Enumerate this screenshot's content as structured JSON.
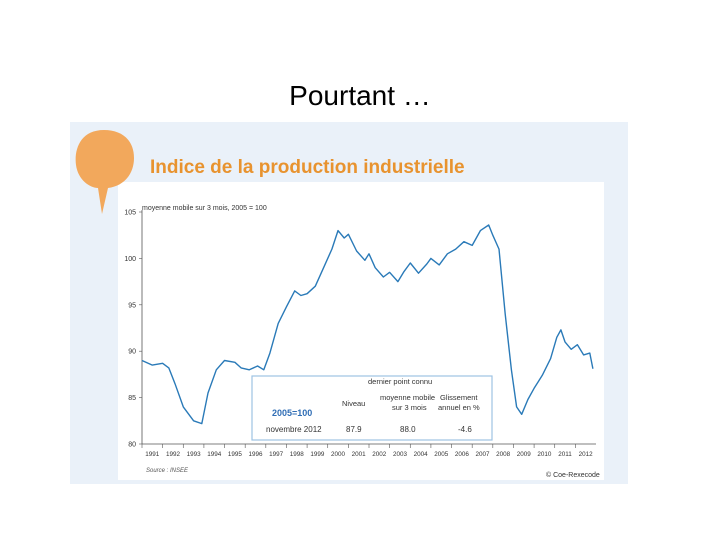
{
  "slide": {
    "title": "Pourtant …"
  },
  "colors": {
    "orange": "#f2a85c",
    "line": "#2a7ab8",
    "table_border": "#9ec3e3",
    "table_bg": "#ffffff",
    "emphasis": "#2f6db5"
  },
  "chart_data": {
    "type": "line",
    "title": "Indice de la production industrielle",
    "subtitle": "moyenne mobile sur 3 mois, 2005 = 100",
    "xlabel": "",
    "ylabel": "",
    "ylim": [
      80,
      105
    ],
    "yticks": [
      "105",
      "100",
      "95",
      "90",
      "85",
      "80"
    ],
    "xlim": [
      1991,
      2013
    ],
    "years": [
      "1991",
      "1992",
      "1993",
      "1994",
      "1995",
      "1996",
      "1997",
      "1998",
      "1999",
      "2000",
      "2001",
      "2002",
      "2003",
      "2004",
      "2005",
      "2006",
      "2007",
      "2008",
      "2009",
      "2010",
      "2011",
      "2012"
    ],
    "series": [
      {
        "values": [
          [
            1991.0,
            89.0
          ],
          [
            1991.5,
            88.5
          ],
          [
            1992.0,
            88.7
          ],
          [
            1992.3,
            88.2
          ],
          [
            1992.6,
            86.5
          ],
          [
            1993.0,
            84.0
          ],
          [
            1993.5,
            82.5
          ],
          [
            1993.9,
            82.2
          ],
          [
            1994.2,
            85.5
          ],
          [
            1994.6,
            88.0
          ],
          [
            1995.0,
            89.0
          ],
          [
            1995.5,
            88.8
          ],
          [
            1995.8,
            88.2
          ],
          [
            1996.2,
            88.0
          ],
          [
            1996.6,
            88.4
          ],
          [
            1996.9,
            88.0
          ],
          [
            1997.2,
            89.8
          ],
          [
            1997.6,
            93.0
          ],
          [
            1998.0,
            94.8
          ],
          [
            1998.4,
            96.5
          ],
          [
            1998.7,
            96.0
          ],
          [
            1999.0,
            96.2
          ],
          [
            1999.4,
            97.0
          ],
          [
            1999.8,
            99.0
          ],
          [
            2000.2,
            101.0
          ],
          [
            2000.5,
            103.0
          ],
          [
            2000.8,
            102.2
          ],
          [
            2001.0,
            102.6
          ],
          [
            2001.4,
            100.8
          ],
          [
            2001.8,
            99.8
          ],
          [
            2002.0,
            100.5
          ],
          [
            2002.3,
            99.0
          ],
          [
            2002.7,
            98.0
          ],
          [
            2003.0,
            98.5
          ],
          [
            2003.4,
            97.5
          ],
          [
            2003.7,
            98.6
          ],
          [
            2004.0,
            99.5
          ],
          [
            2004.4,
            98.4
          ],
          [
            2004.8,
            99.4
          ],
          [
            2005.0,
            100.0
          ],
          [
            2005.4,
            99.3
          ],
          [
            2005.8,
            100.5
          ],
          [
            2006.2,
            101.0
          ],
          [
            2006.6,
            101.8
          ],
          [
            2007.0,
            101.4
          ],
          [
            2007.4,
            103.0
          ],
          [
            2007.8,
            103.6
          ],
          [
            2008.0,
            102.5
          ],
          [
            2008.3,
            101.0
          ],
          [
            2008.6,
            94.0
          ],
          [
            2008.9,
            88.0
          ],
          [
            2009.15,
            84.0
          ],
          [
            2009.4,
            83.2
          ],
          [
            2009.7,
            84.8
          ],
          [
            2010.0,
            86.0
          ],
          [
            2010.4,
            87.4
          ],
          [
            2010.8,
            89.2
          ],
          [
            2011.1,
            91.5
          ],
          [
            2011.3,
            92.3
          ],
          [
            2011.5,
            91.0
          ],
          [
            2011.8,
            90.2
          ],
          [
            2012.1,
            90.7
          ],
          [
            2012.4,
            89.6
          ],
          [
            2012.7,
            89.8
          ],
          [
            2012.85,
            88.1
          ]
        ]
      }
    ],
    "annotations": {
      "source": "Source : INSEE",
      "copyright": "© Coe-Rexecode",
      "base_label": "2005=100",
      "table": {
        "header_main": "dernier point connu",
        "col1": "Niveau",
        "col2_line1": "moyenne mobile",
        "col2_line2": "sur 3 mois",
        "col3_line1": "Glissement",
        "col3_line2": "annuel en %",
        "row_label": "novembre 2012",
        "niveau": "87.9",
        "mm3": "88.0",
        "glissement": "-4.6"
      }
    }
  }
}
